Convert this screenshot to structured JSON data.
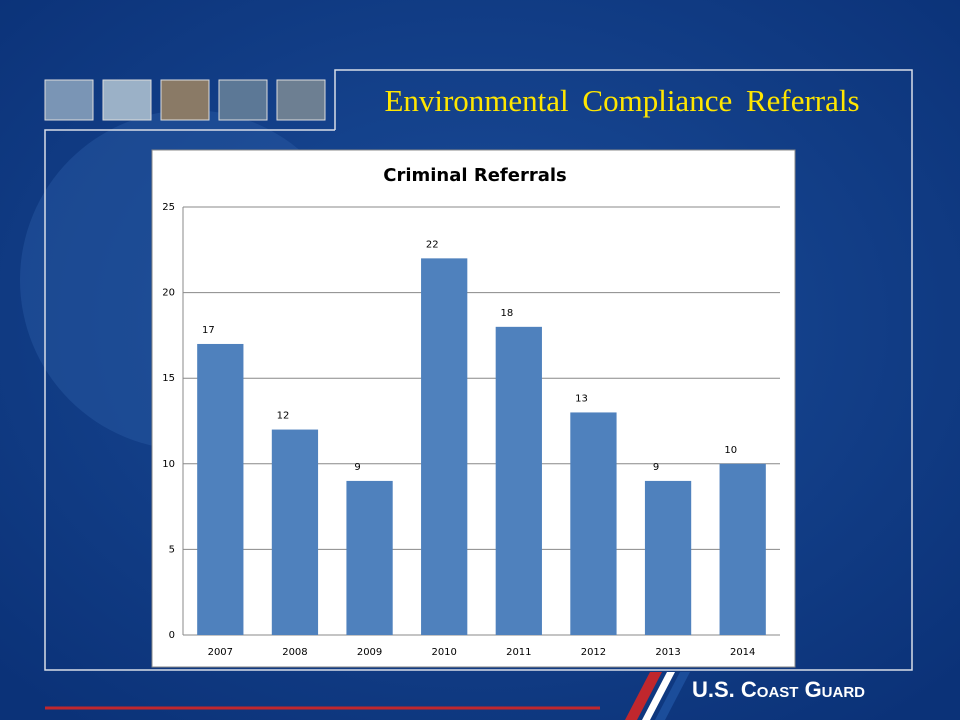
{
  "slide": {
    "title": "Environmental Compliance Referrals",
    "footer": "U.S. Coast Guard"
  },
  "chart_data": {
    "type": "bar",
    "title": "Criminal Referrals",
    "categories": [
      "2007",
      "2008",
      "2009",
      "2010",
      "2011",
      "2012",
      "2013",
      "2014"
    ],
    "values": [
      17,
      12,
      9,
      22,
      18,
      13,
      9,
      10
    ],
    "color": "#4f81bd",
    "ylim": [
      0,
      25
    ],
    "yticks": [
      0,
      5,
      10,
      15,
      20,
      25
    ],
    "grid": true
  }
}
